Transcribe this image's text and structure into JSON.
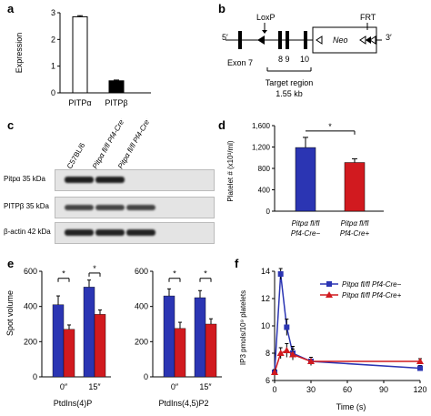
{
  "panels": {
    "a": {
      "letter": "a",
      "chart_data": {
        "type": "bar",
        "categories": [
          "PITPα",
          "PITPβ"
        ],
        "values": [
          2.85,
          0.45
        ],
        "errors": [
          0.04,
          0.03
        ],
        "colors": [
          "#ffffff",
          "#000000"
        ],
        "ylabel": "Expression",
        "ylim": [
          0,
          3
        ],
        "yticks": [
          0,
          1,
          2,
          3
        ],
        "grid": false
      }
    },
    "b": {
      "letter": "b",
      "five_prime": "5′",
      "three_prime": "3′",
      "loxp": "LoxP",
      "frt": "FRT",
      "neo": "Neo",
      "exon7": "Exon 7",
      "exons89": "8 9",
      "exon10": "10",
      "target_region": "Target region",
      "target_size": "1.55 kb"
    },
    "c": {
      "letter": "c",
      "lanes": [
        "C57BL/6",
        "Pitpα fl/fl Pf4-Cre⁻",
        "Pitpα fl/fl Pf4-Cre⁺"
      ],
      "rows": [
        "Pitpα 35 kDa",
        "PITPβ 35 kDa",
        "β-actin 42 kDa"
      ]
    },
    "d": {
      "letter": "d",
      "chart_data": {
        "type": "bar",
        "categories": [
          "Pitpα fl/fl Pf4-Cre−",
          "Pitpα fl/fl Pf4-Cre+"
        ],
        "values": [
          1190,
          910
        ],
        "errors": [
          190,
          70
        ],
        "colors": [
          "#2b35b3",
          "#d11a1f"
        ],
        "ylabel": "Platelet # (x10³/ml)",
        "ylim": [
          0,
          1600
        ],
        "yticks": [
          0,
          400,
          800,
          1200,
          1600
        ],
        "ytick_labels": [
          "0",
          "400",
          "800",
          "1,200",
          "1,600"
        ],
        "significance": "*"
      }
    },
    "e": {
      "letter": "e",
      "chart_data": [
        {
          "type": "bar",
          "title": "PtdIns(4)P",
          "categories": [
            "0″",
            "15″"
          ],
          "series": [
            {
              "values": [
                410,
                510
              ],
              "errors": [
                50,
                40
              ],
              "color": "#2b35b3"
            },
            {
              "values": [
                270,
                355
              ],
              "errors": [
                25,
                25
              ],
              "color": "#d11a1f"
            }
          ],
          "ylabel": "Spot volume",
          "ylim": [
            0,
            600
          ],
          "yticks": [
            0,
            200,
            400,
            600
          ],
          "significance": [
            "*",
            "*"
          ]
        },
        {
          "type": "bar",
          "title": "PtdIns(4,5)P2",
          "categories": [
            "0″",
            "15″"
          ],
          "series": [
            {
              "values": [
                460,
                450
              ],
              "errors": [
                40,
                40
              ],
              "color": "#2b35b3"
            },
            {
              "values": [
                275,
                300
              ],
              "errors": [
                35,
                30
              ],
              "color": "#d11a1f"
            }
          ],
          "ylim": [
            0,
            600
          ],
          "yticks": [
            0,
            200,
            400,
            600
          ],
          "significance": [
            "*",
            "*"
          ]
        }
      ]
    },
    "f": {
      "letter": "f",
      "chart_data": {
        "type": "line",
        "xlabel": "Time (s)",
        "ylabel": "IP3 pmols/10⁹ platelets",
        "xlim": [
          0,
          120
        ],
        "ylim": [
          6,
          14
        ],
        "xticks": [
          0,
          30,
          60,
          90,
          120
        ],
        "yticks": [
          6,
          8,
          10,
          12,
          14
        ],
        "legend_position": "top-right",
        "series": [
          {
            "name": "Pitpα fl/fl Pf4-Cre−",
            "color": "#2b35b3",
            "marker": "square",
            "x": [
              0,
              5,
              10,
              15,
              30,
              120
            ],
            "y": [
              6.6,
              13.8,
              9.9,
              8.0,
              7.4,
              6.9
            ],
            "errors": [
              0.2,
              0.4,
              0.6,
              0.5,
              0.3,
              0.2
            ]
          },
          {
            "name": "Pitpα fl/fl Pf4-Cre+",
            "color": "#d11a1f",
            "marker": "triangle",
            "x": [
              0,
              5,
              10,
              15,
              30,
              120
            ],
            "y": [
              6.6,
              8.0,
              8.2,
              7.9,
              7.4,
              7.4
            ],
            "errors": [
              0.2,
              0.4,
              0.5,
              0.4,
              0.3,
              0.2
            ]
          }
        ]
      }
    }
  }
}
